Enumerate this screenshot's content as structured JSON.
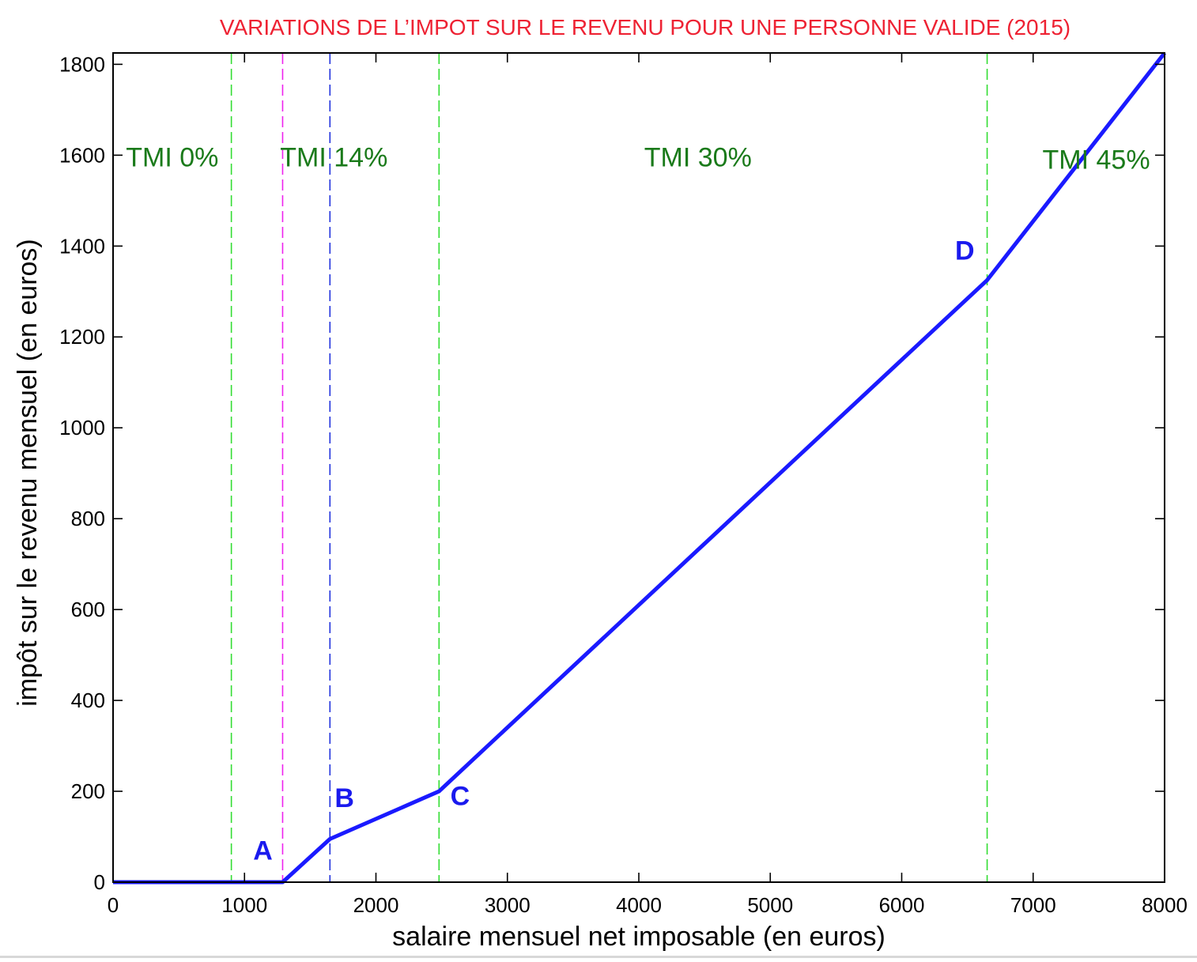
{
  "chart_data": {
    "type": "line",
    "title": "VARIATIONS DE L’IMPOT SUR LE REVENU POUR UNE PERSONNE VALIDE (2015)",
    "xlabel": "salaire mensuel net imposable (en euros)",
    "ylabel": "impôt sur le revenu mensuel (en euros)",
    "xlim": [
      0,
      8000
    ],
    "ylim": [
      0,
      1825
    ],
    "xticks": [
      0,
      1000,
      2000,
      3000,
      4000,
      5000,
      6000,
      7000,
      8000
    ],
    "yticks": [
      0,
      200,
      400,
      600,
      800,
      1000,
      1200,
      1400,
      1600,
      1800
    ],
    "grid": false,
    "series": [
      {
        "x": [
          0,
          1290,
          1650,
          2480,
          6650,
          8000
        ],
        "y": [
          0,
          0,
          95,
          200,
          1325,
          1825
        ],
        "color": "#1a1aff"
      }
    ],
    "vlines": [
      {
        "x": 900,
        "color": "#33dd33",
        "style": "dashed"
      },
      {
        "x": 1290,
        "color": "#ee22ee",
        "style": "dashed"
      },
      {
        "x": 1650,
        "color": "#2233dd",
        "style": "dashed"
      },
      {
        "x": 2480,
        "color": "#33dd33",
        "style": "dashed"
      },
      {
        "x": 6650,
        "color": "#33dd33",
        "style": "dashed"
      }
    ],
    "zone_labels": [
      {
        "text": "TMI 0%",
        "x": 450,
        "y": 1575
      },
      {
        "text": "TMI 14%",
        "x": 1680,
        "y": 1575
      },
      {
        "text": "TMI 30%",
        "x": 4450,
        "y": 1575
      },
      {
        "text": "TMI 45%",
        "x": 7480,
        "y": 1570
      }
    ],
    "zone_label_color": "#1a7a1a",
    "point_labels": [
      {
        "text": "A",
        "x": 1140,
        "y": 50
      },
      {
        "text": "B",
        "x": 1760,
        "y": 165
      },
      {
        "text": "C",
        "x": 2640,
        "y": 170
      },
      {
        "text": "D",
        "x": 6480,
        "y": 1370
      }
    ],
    "point_label_color": "#1a1aee",
    "title_color": "#ee2233"
  }
}
